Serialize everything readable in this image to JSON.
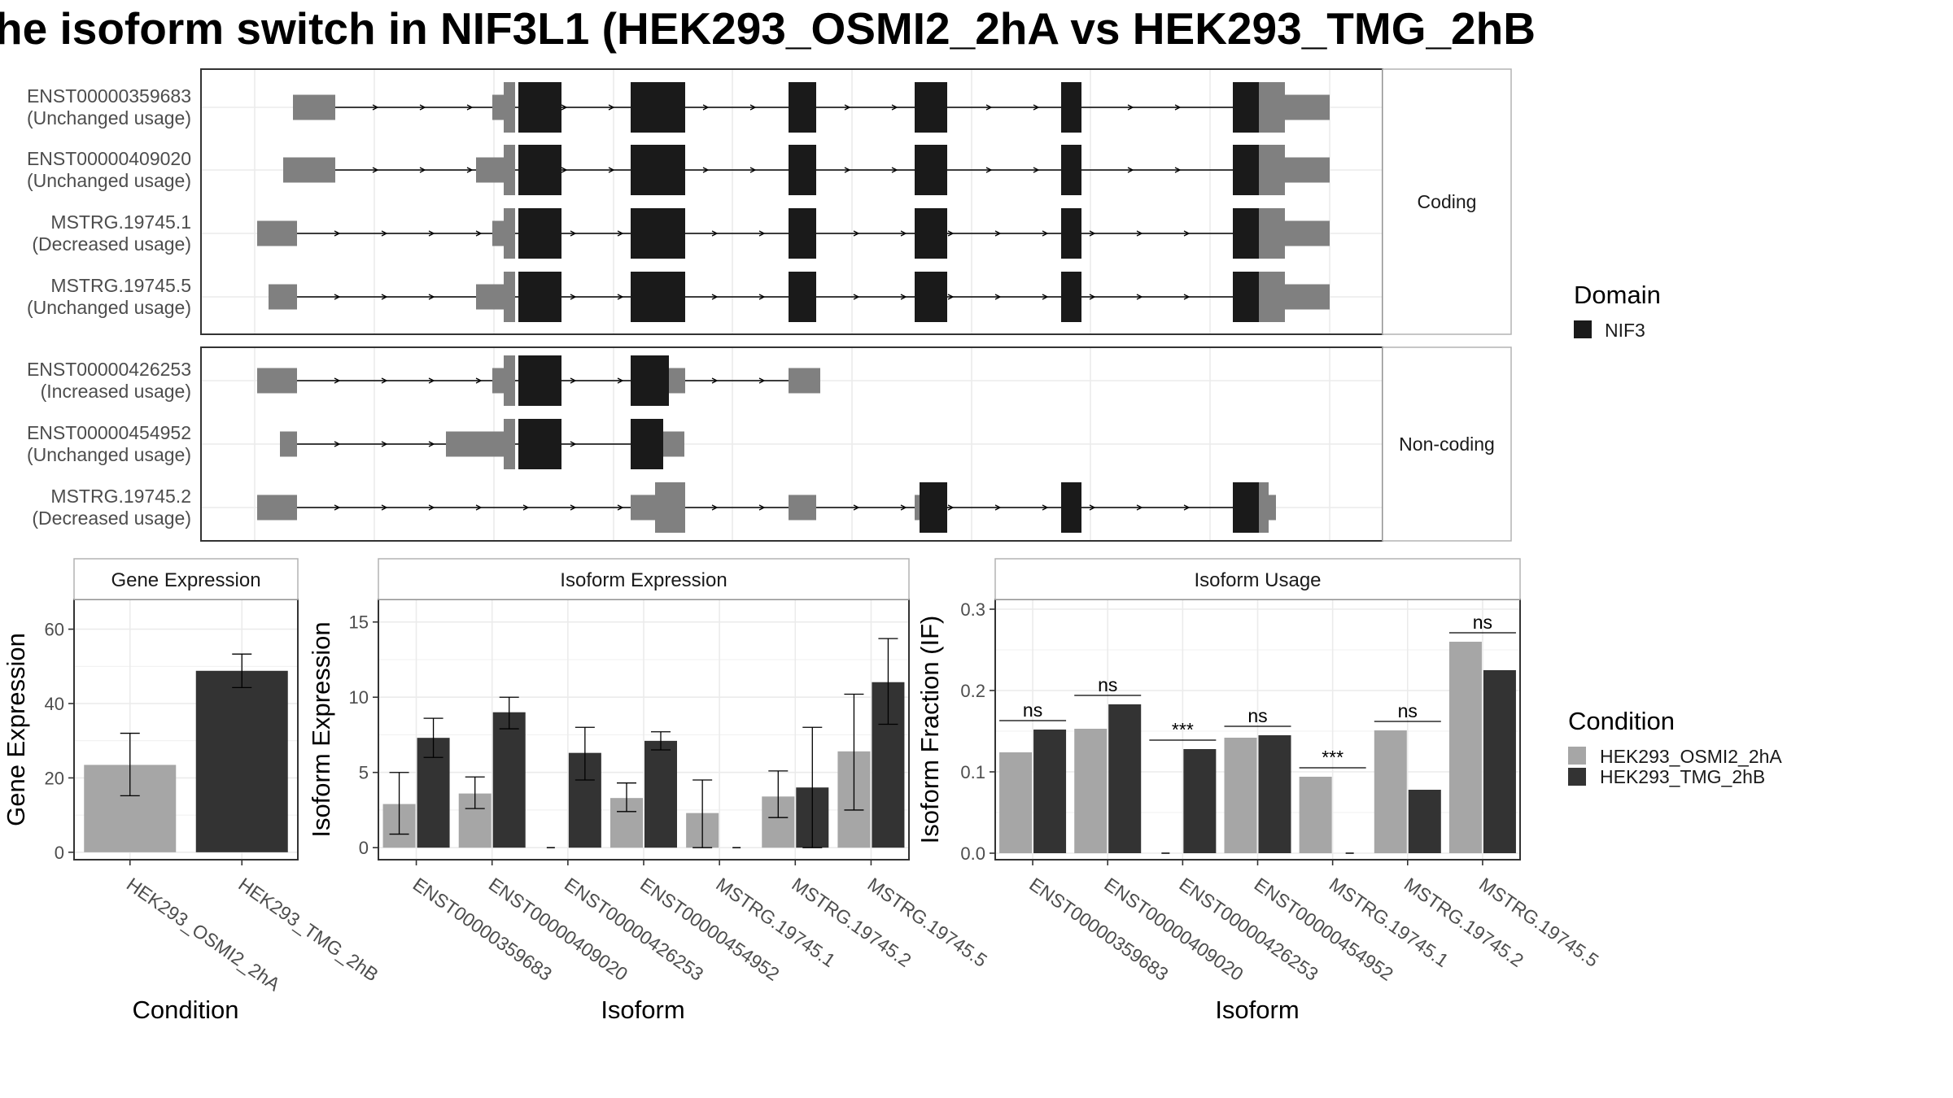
{
  "title": "he isoform switch in NIF3L1 (HEK293_OSMI2_2hA vs HEK293_TMG_2hB",
  "colors": {
    "domain": "#1a1a1a",
    "exon": "#808080",
    "cond_a": "#a6a6a6",
    "cond_b": "#333333",
    "grid": "#ebebeb",
    "strip_bg": "#ffffff"
  },
  "structure": {
    "coding_strip": "Coding",
    "noncoding_strip": "Non-coding",
    "transcripts": [
      {
        "id": "ENST00000359683",
        "usage": "(Unchanged usage)",
        "group": "coding"
      },
      {
        "id": "ENST00000409020",
        "usage": "(Unchanged usage)",
        "group": "coding"
      },
      {
        "id": "MSTRG.19745.1",
        "usage": "(Decreased usage)",
        "group": "coding"
      },
      {
        "id": "MSTRG.19745.5",
        "usage": "(Unchanged usage)",
        "group": "coding"
      },
      {
        "id": "ENST00000426253",
        "usage": "(Increased usage)",
        "group": "noncoding"
      },
      {
        "id": "ENST00000454952",
        "usage": "(Unchanged usage)",
        "group": "noncoding"
      },
      {
        "id": "MSTRG.19745.2",
        "usage": "(Decreased usage)",
        "group": "noncoding"
      }
    ]
  },
  "legend_domain": {
    "title": "Domain",
    "items": [
      {
        "label": "NIF3"
      }
    ]
  },
  "legend_condition": {
    "title": "Condition",
    "items": [
      {
        "label": "HEK293_OSMI2_2hA"
      },
      {
        "label": "HEK293_TMG_2hB"
      }
    ]
  },
  "chart_data": [
    {
      "type": "bar",
      "title": "Gene Expression",
      "xlabel": "Condition",
      "ylabel": "Gene Expression",
      "categories": [
        "HEK293_OSMI2_2hA",
        "HEK293_TMG_2hB"
      ],
      "values": [
        23.5,
        48.8
      ],
      "error_low": [
        15.2,
        44.3
      ],
      "error_high": [
        32.0,
        53.3
      ],
      "ylim": [
        -2,
        68
      ],
      "yticks": [
        0,
        20,
        40,
        60
      ]
    },
    {
      "type": "bar",
      "title": "Isoform Expression",
      "xlabel": "Isoform",
      "ylabel": "Isoform Expression",
      "categories": [
        "ENST00000359683",
        "ENST00000409020",
        "ENST00000426253",
        "ENST00000454952",
        "MSTRG.19745.1",
        "MSTRG.19745.2",
        "MSTRG.19745.5"
      ],
      "series": [
        {
          "name": "HEK293_OSMI2_2hA",
          "values": [
            2.9,
            3.6,
            0.0,
            3.3,
            2.3,
            3.4,
            6.4
          ],
          "error_low": [
            0.9,
            2.6,
            0.0,
            2.4,
            0.0,
            2.0,
            2.5
          ],
          "error_high": [
            5.0,
            4.7,
            0.0,
            4.3,
            4.5,
            5.1,
            10.2
          ]
        },
        {
          "name": "HEK293_TMG_2hB",
          "values": [
            7.3,
            9.0,
            6.3,
            7.1,
            0.0,
            4.0,
            11.0
          ],
          "error_low": [
            6.0,
            7.9,
            4.5,
            6.5,
            0.0,
            0.0,
            8.2
          ],
          "error_high": [
            8.6,
            10.0,
            8.0,
            7.7,
            0.0,
            8.0,
            13.9
          ]
        }
      ],
      "ylim": [
        -0.8,
        16.5
      ],
      "yticks": [
        0,
        5,
        10,
        15
      ]
    },
    {
      "type": "bar",
      "title": "Isoform Usage",
      "xlabel": "Isoform",
      "ylabel": "Isoform Fraction (IF)",
      "categories": [
        "ENST00000359683",
        "ENST00000409020",
        "ENST00000426253",
        "ENST00000454952",
        "MSTRG.19745.1",
        "MSTRG.19745.2",
        "MSTRG.19745.5"
      ],
      "series": [
        {
          "name": "HEK293_OSMI2_2hA",
          "values": [
            0.124,
            0.153,
            0.0,
            0.142,
            0.094,
            0.151,
            0.26
          ]
        },
        {
          "name": "HEK293_TMG_2hB",
          "values": [
            0.152,
            0.183,
            0.128,
            0.145,
            0.0,
            0.078,
            0.225
          ]
        }
      ],
      "annotations": [
        "ns",
        "ns",
        "***",
        "ns",
        "***",
        "ns",
        "ns"
      ],
      "ylim": [
        -0.008,
        0.312
      ],
      "yticks": [
        0.0,
        0.1,
        0.2,
        0.3
      ],
      "ytick_labels": [
        "0.0",
        "0.1",
        "0.2",
        "0.3"
      ]
    }
  ]
}
